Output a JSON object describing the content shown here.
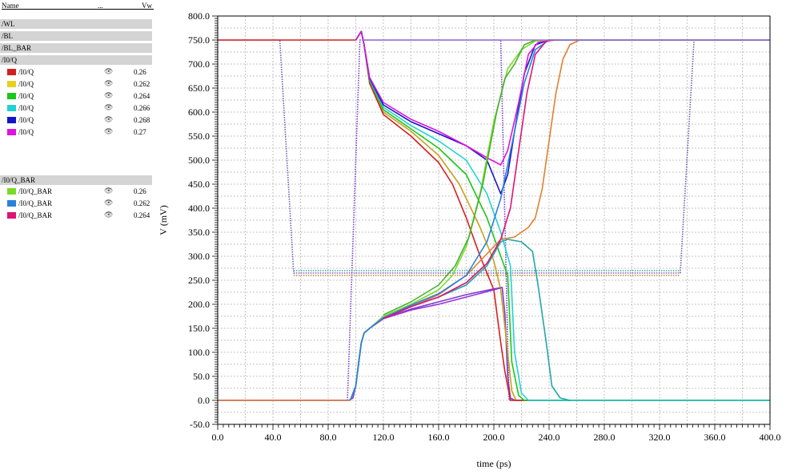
{
  "legend": {
    "header": {
      "name": "Name",
      "dots": "...",
      "vw": "Vw"
    },
    "groups_top": [
      "/WL",
      "/BL",
      "/BL_BAR",
      "/I0/Q"
    ],
    "q_items": [
      {
        "label": "/I0/Q",
        "value": "0.26",
        "color": "#d42020"
      },
      {
        "label": "/I0/Q",
        "value": "0.262",
        "color": "#e6d21e"
      },
      {
        "label": "/I0/Q",
        "value": "0.264",
        "color": "#19c819"
      },
      {
        "label": "/I0/Q",
        "value": "0.266",
        "color": "#22d2d2"
      },
      {
        "label": "/I0/Q",
        "value": "0.268",
        "color": "#1414c8"
      },
      {
        "label": "/I0/Q",
        "value": "0.27",
        "color": "#dc14dc"
      }
    ],
    "group_bar": "/I0/Q_BAR",
    "qbar_items": [
      {
        "label": "/I0/Q_BAR",
        "value": "0.26",
        "color": "#78dc28"
      },
      {
        "label": "/I0/Q_BAR",
        "value": "0.262",
        "color": "#2882dc"
      },
      {
        "label": "/I0/Q_BAR",
        "value": "0.264",
        "color": "#dc1478"
      }
    ]
  },
  "chart_data": {
    "type": "line",
    "xlabel": "time (ps)",
    "ylabel": "V (mV)",
    "xlim": [
      0,
      400
    ],
    "ylim": [
      -50,
      800
    ],
    "xticks": [
      0,
      40,
      80,
      120,
      160,
      200,
      240,
      280,
      320,
      360,
      400
    ],
    "xtick_labels": [
      "0.0",
      "40.0",
      "80.0",
      "120.0",
      "160.0",
      "200.0",
      "240.0",
      "280.0",
      "320.0",
      "360.0",
      "400.0"
    ],
    "yticks": [
      -50,
      0,
      50,
      100,
      150,
      200,
      250,
      300,
      350,
      400,
      450,
      500,
      550,
      600,
      650,
      700,
      750,
      800
    ],
    "ytick_labels": [
      "-50.0",
      "0.0",
      "50.0",
      "100.0",
      "150.0",
      "200.0",
      "250.0",
      "300.0",
      "350.0",
      "400.0",
      "450.0",
      "500.0",
      "550.0",
      "600.0",
      "650.0",
      "700.0",
      "750.0",
      "800.0"
    ],
    "grid": true,
    "series": [
      {
        "name": "/WL",
        "color": "#7a3cc8",
        "dotted": false,
        "points": [
          [
            0,
            0
          ],
          [
            95,
            0
          ],
          [
            98,
            5
          ],
          [
            100,
            30
          ],
          [
            102,
            80
          ],
          [
            104,
            120
          ],
          [
            106,
            140
          ],
          [
            110,
            150
          ],
          [
            120,
            170
          ],
          [
            140,
            190
          ],
          [
            160,
            205
          ],
          [
            180,
            220
          ],
          [
            200,
            232
          ],
          [
            206,
            235
          ],
          [
            208,
            180
          ],
          [
            210,
            50
          ],
          [
            212,
            5
          ],
          [
            215,
            0
          ],
          [
            400,
            0
          ]
        ]
      },
      {
        "name": "/BL",
        "color": "#6a5fb0",
        "dotted": true,
        "points": [
          [
            0,
            750
          ],
          [
            45,
            750
          ],
          [
            55,
            265
          ],
          [
            335,
            265
          ],
          [
            345,
            750
          ],
          [
            400,
            750
          ]
        ]
      },
      {
        "name": "/BL_BAR",
        "color": "#7a3cc8",
        "dotted": true,
        "points": [
          [
            0,
            0
          ],
          [
            94,
            0
          ],
          [
            103,
            750
          ],
          [
            205,
            750
          ],
          [
            211,
            0
          ],
          [
            400,
            0
          ]
        ]
      },
      {
        "name": "/BL_BAR",
        "color": "#c87a40",
        "dotted": true,
        "points": [
          [
            55,
            260
          ],
          [
            335,
            260
          ]
        ]
      },
      {
        "name": "/BL_BAR",
        "color": "#40a0a0",
        "dotted": true,
        "points": [
          [
            55,
            270
          ],
          [
            335,
            270
          ]
        ]
      },
      {
        "name": "",
        "color": "#c8a020",
        "dotted": false,
        "points": [
          [
            100,
            750
          ],
          [
            104,
            768
          ],
          [
            106,
            740
          ],
          [
            110,
            660
          ],
          [
            120,
            600
          ],
          [
            140,
            560
          ],
          [
            160,
            510
          ],
          [
            175,
            450
          ],
          [
            190,
            360
          ],
          [
            200,
            290
          ],
          [
            205,
            230
          ],
          [
            210,
            100
          ],
          [
            213,
            20
          ],
          [
            216,
            0
          ],
          [
            400,
            0
          ]
        ]
      },
      {
        "name": "/I0/Q",
        "color": "#d42020",
        "dotted": false,
        "points": [
          [
            0,
            750
          ],
          [
            100,
            750
          ],
          [
            104,
            768
          ],
          [
            106,
            740
          ],
          [
            110,
            660
          ],
          [
            120,
            595
          ],
          [
            140,
            550
          ],
          [
            160,
            495
          ],
          [
            170,
            450
          ],
          [
            180,
            380
          ],
          [
            190,
            300
          ],
          [
            200,
            230
          ],
          [
            205,
            120
          ],
          [
            208,
            60
          ],
          [
            212,
            0
          ],
          [
            400,
            0
          ]
        ]
      },
      {
        "name": "/I0/Q",
        "color": "#19c819",
        "dotted": false,
        "points": [
          [
            100,
            750
          ],
          [
            104,
            768
          ],
          [
            106,
            740
          ],
          [
            110,
            665
          ],
          [
            120,
            605
          ],
          [
            140,
            565
          ],
          [
            160,
            525
          ],
          [
            180,
            470
          ],
          [
            195,
            380
          ],
          [
            205,
            300
          ],
          [
            210,
            260
          ],
          [
            213,
            80
          ],
          [
            218,
            10
          ],
          [
            222,
            0
          ],
          [
            400,
            0
          ]
        ]
      },
      {
        "name": "/I0/Q",
        "color": "#22d2d2",
        "dotted": false,
        "points": [
          [
            100,
            750
          ],
          [
            104,
            768
          ],
          [
            106,
            740
          ],
          [
            110,
            668
          ],
          [
            120,
            610
          ],
          [
            140,
            572
          ],
          [
            160,
            540
          ],
          [
            180,
            500
          ],
          [
            195,
            430
          ],
          [
            205,
            350
          ],
          [
            212,
            280
          ],
          [
            215,
            100
          ],
          [
            220,
            15
          ],
          [
            225,
            0
          ],
          [
            400,
            0
          ]
        ]
      },
      {
        "name": "/I0/Q",
        "color": "#1414c8",
        "dotted": false,
        "points": [
          [
            100,
            750
          ],
          [
            104,
            768
          ],
          [
            106,
            740
          ],
          [
            110,
            670
          ],
          [
            120,
            615
          ],
          [
            140,
            580
          ],
          [
            160,
            555
          ],
          [
            180,
            530
          ],
          [
            195,
            500
          ],
          [
            205,
            430
          ],
          [
            210,
            470
          ],
          [
            215,
            560
          ],
          [
            222,
            680
          ],
          [
            230,
            740
          ],
          [
            240,
            750
          ],
          [
            400,
            750
          ]
        ]
      },
      {
        "name": "/I0/Q",
        "color": "#dc14dc",
        "dotted": false,
        "points": [
          [
            100,
            750
          ],
          [
            104,
            768
          ],
          [
            106,
            740
          ],
          [
            110,
            672
          ],
          [
            120,
            620
          ],
          [
            140,
            585
          ],
          [
            160,
            560
          ],
          [
            180,
            530
          ],
          [
            195,
            505
          ],
          [
            205,
            490
          ],
          [
            210,
            520
          ],
          [
            218,
            620
          ],
          [
            225,
            720
          ],
          [
            232,
            745
          ],
          [
            240,
            750
          ],
          [
            400,
            750
          ]
        ]
      },
      {
        "name": "",
        "color": "#e08030",
        "dotted": false,
        "points": [
          [
            0,
            0
          ],
          [
            96,
            0
          ],
          [
            100,
            30
          ],
          [
            104,
            120
          ],
          [
            106,
            140
          ],
          [
            110,
            150
          ],
          [
            120,
            170
          ],
          [
            140,
            195
          ],
          [
            160,
            220
          ],
          [
            180,
            260
          ],
          [
            195,
            305
          ],
          [
            205,
            335
          ],
          [
            215,
            340
          ],
          [
            225,
            360
          ],
          [
            230,
            380
          ],
          [
            235,
            440
          ],
          [
            240,
            540
          ],
          [
            245,
            640
          ],
          [
            250,
            710
          ],
          [
            255,
            740
          ],
          [
            262,
            750
          ],
          [
            400,
            750
          ]
        ]
      },
      {
        "name": "",
        "color": "#20a8a8",
        "dotted": false,
        "points": [
          [
            96,
            0
          ],
          [
            100,
            30
          ],
          [
            104,
            120
          ],
          [
            106,
            140
          ],
          [
            110,
            150
          ],
          [
            120,
            172
          ],
          [
            140,
            195
          ],
          [
            160,
            215
          ],
          [
            180,
            240
          ],
          [
            195,
            280
          ],
          [
            205,
            330
          ],
          [
            210,
            335
          ],
          [
            220,
            330
          ],
          [
            228,
            310
          ],
          [
            232,
            240
          ],
          [
            238,
            120
          ],
          [
            242,
            30
          ],
          [
            248,
            5
          ],
          [
            255,
            0
          ]
        ]
      },
      {
        "name": "",
        "color": "#9b30d8",
        "dotted": false,
        "points": [
          [
            96,
            0
          ],
          [
            100,
            30
          ],
          [
            104,
            120
          ],
          [
            106,
            140
          ],
          [
            110,
            150
          ],
          [
            120,
            170
          ],
          [
            140,
            188
          ],
          [
            160,
            200
          ],
          [
            180,
            215
          ],
          [
            200,
            230
          ],
          [
            206,
            235
          ]
        ]
      },
      {
        "name": "/I0/Q_BAR",
        "color": "#78dc28",
        "dotted": false,
        "points": [
          [
            96,
            0
          ],
          [
            100,
            30
          ],
          [
            104,
            120
          ],
          [
            106,
            140
          ],
          [
            110,
            150
          ],
          [
            120,
            175
          ],
          [
            140,
            200
          ],
          [
            160,
            230
          ],
          [
            170,
            260
          ],
          [
            180,
            320
          ],
          [
            190,
            430
          ],
          [
            200,
            580
          ],
          [
            210,
            690
          ],
          [
            220,
            730
          ],
          [
            230,
            748
          ],
          [
            240,
            750
          ],
          [
            400,
            750
          ]
        ]
      },
      {
        "name": "/I0/Q_BAR",
        "color": "#48b030",
        "dotted": false,
        "points": [
          [
            120,
            178
          ],
          [
            140,
            205
          ],
          [
            160,
            240
          ],
          [
            172,
            280
          ],
          [
            182,
            340
          ],
          [
            192,
            450
          ],
          [
            202,
            600
          ],
          [
            208,
            670
          ],
          [
            215,
            700
          ],
          [
            222,
            740
          ],
          [
            230,
            750
          ]
        ]
      },
      {
        "name": "/I0/Q_BAR",
        "color": "#2882dc",
        "dotted": false,
        "points": [
          [
            96,
            0
          ],
          [
            100,
            30
          ],
          [
            104,
            120
          ],
          [
            106,
            140
          ],
          [
            110,
            150
          ],
          [
            120,
            172
          ],
          [
            140,
            198
          ],
          [
            160,
            222
          ],
          [
            180,
            260
          ],
          [
            195,
            330
          ],
          [
            205,
            420
          ],
          [
            215,
            560
          ],
          [
            222,
            660
          ],
          [
            230,
            730
          ],
          [
            240,
            750
          ],
          [
            400,
            750
          ]
        ]
      },
      {
        "name": "/I0/Q_BAR",
        "color": "#dc1478",
        "dotted": false,
        "points": [
          [
            120,
            170
          ],
          [
            140,
            195
          ],
          [
            160,
            215
          ],
          [
            180,
            245
          ],
          [
            195,
            285
          ],
          [
            205,
            335
          ],
          [
            212,
            400
          ],
          [
            218,
            520
          ],
          [
            224,
            640
          ],
          [
            230,
            720
          ],
          [
            238,
            748
          ],
          [
            245,
            750
          ]
        ]
      },
      {
        "name": "",
        "color": "#a070d0",
        "dotted": false,
        "points": [
          [
            105,
            750
          ],
          [
            400,
            750
          ]
        ]
      }
    ]
  }
}
